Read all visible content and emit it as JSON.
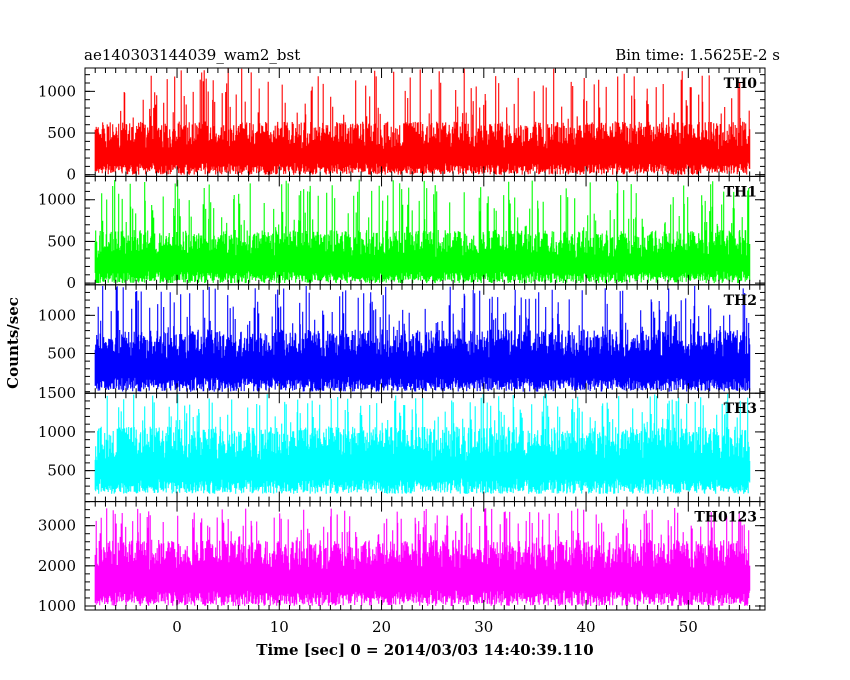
{
  "header": {
    "object": "ae140303144039_wam2_bst",
    "bin_time": "Bin time: 1.5625E-2 s"
  },
  "xlabel": "Time [sec] 0 = 2014/03/03 14:40:39.110",
  "ylabel": "Counts/sec",
  "chart_data": {
    "type": "line",
    "title": "ae140303144039_wam2_bst",
    "xlabel": "Time [sec] 0 = 2014/03/03 14:40:39.110",
    "ylabel": "Counts/sec",
    "xlim": [
      -9,
      57.5
    ],
    "x_ticks": [
      0,
      10,
      20,
      30,
      40,
      50
    ],
    "data_x_range": [
      -8,
      56
    ],
    "bin_time_s": 0.015625,
    "panels": [
      {
        "name": "TH0",
        "color": "#ff0000",
        "ylim": [
          -20,
          1280
        ],
        "y_ticks": [
          0,
          500,
          1000
        ],
        "y_tick_labels": [
          "0",
          "500",
          "1000"
        ],
        "baseline_min": 0,
        "mean": 420,
        "spread": 240,
        "peak": 1290
      },
      {
        "name": "TH1",
        "color": "#00ff00",
        "ylim": [
          -20,
          1280
        ],
        "y_ticks": [
          0,
          500,
          1000
        ],
        "y_tick_labels": [
          "0",
          "500",
          "1000"
        ],
        "baseline_min": 0,
        "mean": 420,
        "spread": 240,
        "peak": 1250
      },
      {
        "name": "TH2",
        "color": "#0000ff",
        "ylim": [
          -20,
          1400
        ],
        "y_ticks": [
          500,
          1000
        ],
        "y_tick_labels": [
          "500",
          "1000"
        ],
        "baseline_min": 0,
        "mean": 560,
        "spread": 280,
        "peak": 1390
      },
      {
        "name": "TH3",
        "color": "#00ffff",
        "ylim": [
          100,
          1500
        ],
        "y_ticks": [
          500,
          1000,
          1500
        ],
        "y_tick_labels": [
          "500",
          "1000",
          "1500"
        ],
        "baseline_min": 200,
        "mean": 780,
        "spread": 320,
        "peak": 1500
      },
      {
        "name": "TH0123",
        "color": "#ff00ff",
        "ylim": [
          900,
          3600
        ],
        "y_ticks": [
          1000,
          2000,
          3000
        ],
        "y_tick_labels": [
          "1000",
          "2000",
          "3000"
        ],
        "baseline_min": 1000,
        "mean": 2150,
        "spread": 550,
        "peak": 3450
      }
    ]
  }
}
